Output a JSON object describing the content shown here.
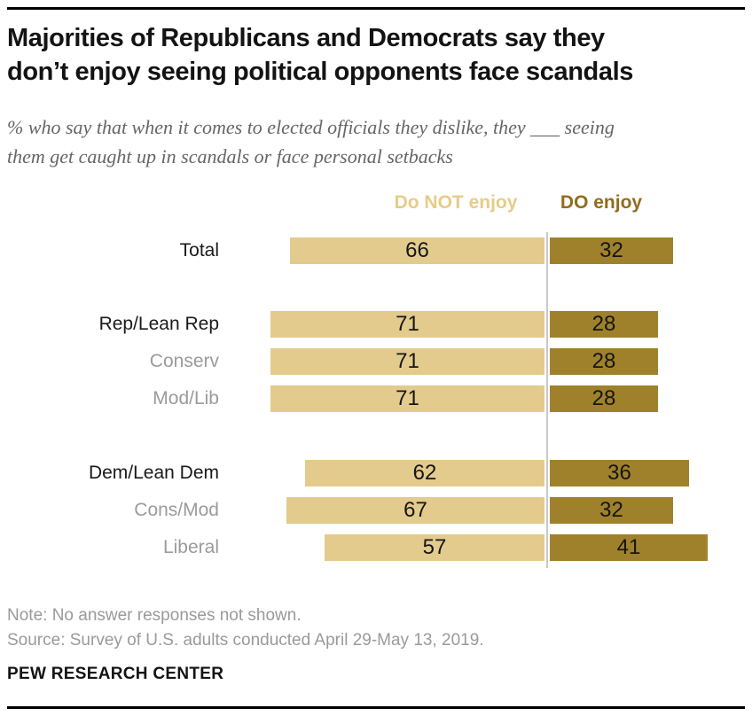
{
  "header": {
    "title": "Majorities of Republicans and Democrats say they don’t enjoy seeing political opponents face scandals",
    "title_lines": [
      "Majorities of Republicans and Democrats say they",
      "don’t enjoy seeing political opponents face scandals"
    ],
    "subtitle": "% who say that when it comes to elected officials they dislike, they ___ seeing them get caught up in scandals or face personal setbacks",
    "subtitle_lines": [
      "% who say that when it comes to elected officials they dislike, they ___ seeing",
      "them get caught up in scandals or face personal setbacks"
    ]
  },
  "chart_data": {
    "type": "bar",
    "orientation": "horizontal",
    "title": "Majorities of Republicans and Democrats say they don’t enjoy seeing political opponents face scandals",
    "categories": [
      "Total",
      "Rep/Lean Rep",
      "Conserv",
      "Mod/Lib",
      "Dem/Lean Dem",
      "Cons/Mod",
      "Liberal"
    ],
    "category_levels": [
      "primary",
      "primary",
      "sub",
      "sub",
      "primary",
      "sub",
      "sub"
    ],
    "series": [
      {
        "name": "Do NOT enjoy",
        "color": "#e3cb8d",
        "values": [
          66,
          71,
          71,
          71,
          62,
          67,
          57
        ]
      },
      {
        "name": "DO enjoy",
        "color": "#a0812b",
        "values": [
          32,
          28,
          28,
          28,
          36,
          32,
          41
        ]
      }
    ],
    "value_labels": true,
    "xlim": [
      0,
      100
    ],
    "legend_position": "top",
    "grid": false,
    "group_gaps_after": [
      0,
      3
    ],
    "baseline_divider": true
  },
  "colors": {
    "bar_not_enjoy": "#e3cb8d",
    "bar_do_enjoy": "#a0812b",
    "legend_not_enjoy": "#e7cc88",
    "legend_do_enjoy": "#8f6d1d",
    "divider": "#c9c9c9",
    "label_primary": "#1a1a1a",
    "label_sub": "#9b9b9b",
    "note_gray": "#9a9a9a"
  },
  "footer": {
    "note": "Note: No answer responses not shown.",
    "source": "Source: Survey of U.S. adults conducted April 29-May 13, 2019.",
    "brand": "PEW RESEARCH CENTER"
  }
}
